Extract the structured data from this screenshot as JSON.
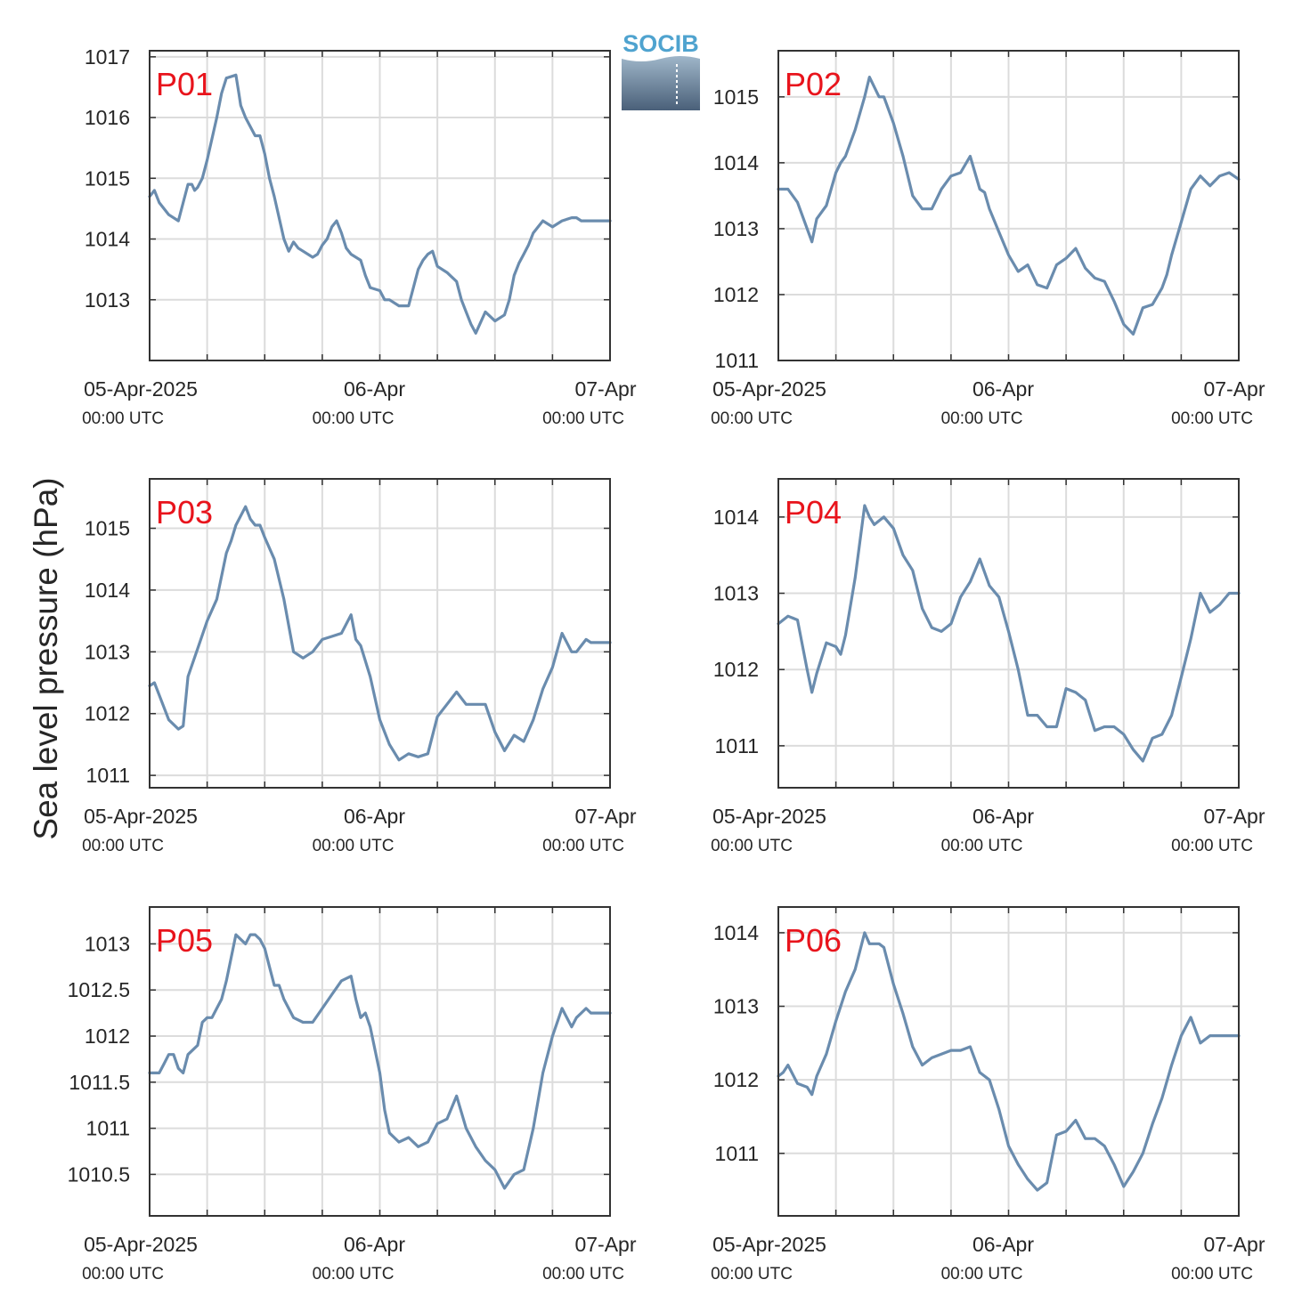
{
  "figure": {
    "ylabel": "Sea level pressure (hPa)",
    "logo_text": "SOCIB",
    "colors": {
      "line": "#6a8cae",
      "label": "#e8141c",
      "grid": "#dcdcdc",
      "axis": "#333333"
    }
  },
  "chart_data": [
    {
      "type": "line",
      "title": "P01",
      "xlabels": [
        {
          "date": "05-Apr-2025",
          "time": "00:00 UTC"
        },
        {
          "date": "06-Apr",
          "time": "00:00 UTC"
        },
        {
          "date": "07-Apr",
          "time": "00:00 UTC"
        }
      ],
      "x_hours_range": [
        0,
        48
      ],
      "ylim": [
        1012,
        1017.1
      ],
      "yticks": [
        1013,
        1014,
        1015,
        1016,
        1017
      ],
      "x": [
        0,
        0.5,
        1,
        2,
        3,
        3.5,
        4,
        4.4,
        4.7,
        5,
        5.5,
        6,
        7,
        7.5,
        8,
        9,
        9.3,
        9.5,
        10,
        11,
        11.5,
        12,
        12.5,
        13,
        14,
        14.5,
        15,
        15.5,
        16,
        17,
        17.5,
        18,
        18.5,
        19,
        19.5,
        20,
        20.5,
        21,
        21.5,
        22,
        22.5,
        23,
        24,
        24.5,
        25,
        26,
        27,
        28,
        28.5,
        29,
        29.5,
        30,
        31,
        32,
        32.5,
        33,
        33.5,
        34,
        35,
        36,
        37,
        37.5,
        38,
        38.5,
        39,
        39.5,
        40,
        41,
        42,
        43,
        44,
        44.5,
        45,
        45.5,
        46,
        46.5,
        47,
        47.5,
        48
      ],
      "y": [
        1014.7,
        1014.8,
        1014.6,
        1014.4,
        1014.3,
        1014.6,
        1014.9,
        1014.9,
        1014.8,
        1014.85,
        1015.0,
        1015.3,
        1016.0,
        1016.4,
        1016.65,
        1016.7,
        1016.4,
        1016.2,
        1016.0,
        1015.7,
        1015.7,
        1015.4,
        1015.0,
        1014.7,
        1014.0,
        1013.8,
        1013.95,
        1013.85,
        1013.8,
        1013.7,
        1013.75,
        1013.9,
        1014.0,
        1014.2,
        1014.3,
        1014.1,
        1013.85,
        1013.75,
        1013.7,
        1013.65,
        1013.4,
        1013.2,
        1013.15,
        1013.0,
        1013.0,
        1012.9,
        1012.9,
        1013.5,
        1013.65,
        1013.75,
        1013.8,
        1013.55,
        1013.45,
        1013.3,
        1013.0,
        1012.8,
        1012.6,
        1012.45,
        1012.8,
        1012.65,
        1012.75,
        1013.0,
        1013.4,
        1013.6,
        1013.75,
        1013.9,
        1014.1,
        1014.3,
        1014.2,
        1014.3,
        1014.35,
        1014.35,
        1014.3,
        1014.3,
        1014.3,
        1014.3,
        1014.3,
        1014.3,
        1014.3
      ],
      "grid": true
    },
    {
      "type": "line",
      "title": "P02",
      "xlabels": [
        {
          "date": "05-Apr-2025",
          "time": "00:00 UTC"
        },
        {
          "date": "06-Apr",
          "time": "00:00 UTC"
        },
        {
          "date": "07-Apr",
          "time": "00:00 UTC"
        }
      ],
      "x_hours_range": [
        0,
        48
      ],
      "ylim": [
        1011,
        1015.7
      ],
      "yticks": [
        1011,
        1012,
        1013,
        1014,
        1015
      ],
      "x": [
        0,
        1,
        2,
        3,
        3.5,
        4,
        5,
        6,
        6.5,
        7,
        8,
        9,
        9.5,
        10,
        10.5,
        11,
        12,
        13,
        14,
        15,
        16,
        17,
        18,
        19,
        20,
        21,
        21.5,
        22,
        23,
        24,
        25,
        26,
        27,
        28,
        29,
        30,
        31,
        32,
        33,
        34,
        35,
        36,
        37,
        38,
        39,
        40,
        40.5,
        41,
        42,
        43,
        44,
        45,
        46,
        47,
        48
      ],
      "y": [
        1013.6,
        1013.6,
        1013.4,
        1013.0,
        1012.8,
        1013.15,
        1013.35,
        1013.85,
        1014.0,
        1014.1,
        1014.5,
        1015.0,
        1015.3,
        1015.15,
        1015.0,
        1015.0,
        1014.6,
        1014.1,
        1013.5,
        1013.3,
        1013.3,
        1013.6,
        1013.8,
        1013.85,
        1014.1,
        1013.6,
        1013.55,
        1013.3,
        1012.95,
        1012.6,
        1012.35,
        1012.45,
        1012.15,
        1012.1,
        1012.45,
        1012.55,
        1012.7,
        1012.4,
        1012.25,
        1012.2,
        1011.9,
        1011.55,
        1011.4,
        1011.8,
        1011.85,
        1012.1,
        1012.3,
        1012.6,
        1013.1,
        1013.6,
        1013.8,
        1013.65,
        1013.8,
        1013.85,
        1013.75
      ],
      "grid": true
    },
    {
      "type": "line",
      "title": "P03",
      "xlabels": [
        {
          "date": "05-Apr-2025",
          "time": "00:00 UTC"
        },
        {
          "date": "06-Apr",
          "time": "00:00 UTC"
        },
        {
          "date": "07-Apr",
          "time": "00:00 UTC"
        }
      ],
      "x_hours_range": [
        0,
        48
      ],
      "ylim": [
        1010.8,
        1015.8
      ],
      "yticks": [
        1011,
        1012,
        1013,
        1014,
        1015
      ],
      "x": [
        0,
        0.5,
        1,
        2,
        3,
        3.5,
        4,
        5,
        6,
        7,
        8,
        8.5,
        9,
        10,
        10.5,
        11,
        11.5,
        12,
        13,
        14,
        15,
        16,
        17,
        18,
        19,
        20,
        21,
        21.5,
        22,
        23,
        24,
        25,
        26,
        27,
        28,
        29,
        30,
        31,
        32,
        33,
        34,
        35,
        36,
        37,
        38,
        39,
        40,
        41,
        42,
        43,
        44,
        44.5,
        45,
        45.5,
        46,
        47,
        48
      ],
      "y": [
        1012.45,
        1012.5,
        1012.3,
        1011.9,
        1011.75,
        1011.8,
        1012.6,
        1013.05,
        1013.5,
        1013.85,
        1014.6,
        1014.8,
        1015.05,
        1015.35,
        1015.15,
        1015.05,
        1015.05,
        1014.85,
        1014.5,
        1013.85,
        1013.0,
        1012.9,
        1013.0,
        1013.2,
        1013.25,
        1013.3,
        1013.6,
        1013.2,
        1013.1,
        1012.6,
        1011.9,
        1011.5,
        1011.25,
        1011.35,
        1011.3,
        1011.35,
        1011.95,
        1012.15,
        1012.35,
        1012.15,
        1012.15,
        1012.15,
        1011.7,
        1011.4,
        1011.65,
        1011.55,
        1011.9,
        1012.4,
        1012.75,
        1013.3,
        1013.0,
        1013.0,
        1013.1,
        1013.2,
        1013.15,
        1013.15,
        1013.15
      ],
      "grid": true
    },
    {
      "type": "line",
      "title": "P04",
      "xlabels": [
        {
          "date": "05-Apr-2025",
          "time": "00:00 UTC"
        },
        {
          "date": "06-Apr",
          "time": "00:00 UTC"
        },
        {
          "date": "07-Apr",
          "time": "00:00 UTC"
        }
      ],
      "x_hours_range": [
        0,
        48
      ],
      "ylim": [
        1010.45,
        1014.5
      ],
      "yticks": [
        1011,
        1012,
        1013,
        1014
      ],
      "x": [
        0,
        1,
        2,
        3,
        3.5,
        4,
        5,
        6,
        6.5,
        7,
        8,
        9,
        9.5,
        10,
        11,
        12,
        13,
        14,
        15,
        16,
        17,
        18,
        19,
        20,
        21,
        22,
        23,
        24,
        25,
        26,
        27,
        28,
        29,
        30,
        31,
        32,
        33,
        34,
        35,
        36,
        37,
        38,
        39,
        40,
        41,
        42,
        43,
        44,
        45,
        46,
        47,
        48
      ],
      "y": [
        1012.6,
        1012.7,
        1012.65,
        1012.0,
        1011.7,
        1011.95,
        1012.35,
        1012.3,
        1012.2,
        1012.45,
        1013.2,
        1014.15,
        1014.0,
        1013.9,
        1014.0,
        1013.85,
        1013.5,
        1013.3,
        1012.8,
        1012.55,
        1012.5,
        1012.6,
        1012.95,
        1013.15,
        1013.45,
        1013.1,
        1012.95,
        1012.5,
        1012.0,
        1011.4,
        1011.4,
        1011.25,
        1011.25,
        1011.75,
        1011.7,
        1011.6,
        1011.2,
        1011.25,
        1011.25,
        1011.15,
        1010.95,
        1010.8,
        1011.1,
        1011.15,
        1011.4,
        1011.9,
        1012.4,
        1013.0,
        1012.75,
        1012.85,
        1013.0,
        1013.0
      ],
      "grid": true
    },
    {
      "type": "line",
      "title": "P05",
      "xlabels": [
        {
          "date": "05-Apr-2025",
          "time": "00:00 UTC"
        },
        {
          "date": "06-Apr",
          "time": "00:00 UTC"
        },
        {
          "date": "07-Apr",
          "time": "00:00 UTC"
        }
      ],
      "x_hours_range": [
        0,
        48
      ],
      "ylim": [
        1010.05,
        1013.4
      ],
      "yticks": [
        1010.5,
        1011,
        1011.5,
        1012,
        1012.5,
        1013
      ],
      "x": [
        0,
        1,
        1.5,
        2,
        2.5,
        3,
        3.5,
        4,
        4.5,
        5,
        5.5,
        6,
        6.5,
        7,
        7.5,
        8,
        9,
        9.5,
        10,
        10.5,
        11,
        11.5,
        12,
        12.5,
        13,
        13.5,
        14,
        15,
        16,
        17,
        18,
        19,
        20,
        21,
        21.5,
        22,
        22.5,
        23,
        24,
        24.5,
        25,
        26,
        27,
        28,
        29,
        30,
        31,
        32,
        33,
        34,
        35,
        36,
        37,
        38,
        39,
        40,
        41,
        42,
        43,
        44,
        44.5,
        45,
        45.5,
        46,
        47,
        48
      ],
      "y": [
        1011.6,
        1011.6,
        1011.7,
        1011.8,
        1011.8,
        1011.65,
        1011.6,
        1011.8,
        1011.85,
        1011.9,
        1012.15,
        1012.2,
        1012.2,
        1012.3,
        1012.4,
        1012.6,
        1013.1,
        1013.05,
        1013.0,
        1013.1,
        1013.1,
        1013.05,
        1012.95,
        1012.75,
        1012.55,
        1012.55,
        1012.4,
        1012.2,
        1012.15,
        1012.15,
        1012.3,
        1012.45,
        1012.6,
        1012.65,
        1012.4,
        1012.2,
        1012.25,
        1012.1,
        1011.6,
        1011.2,
        1010.95,
        1010.85,
        1010.9,
        1010.8,
        1010.85,
        1011.05,
        1011.1,
        1011.35,
        1011.0,
        1010.8,
        1010.65,
        1010.55,
        1010.35,
        1010.5,
        1010.55,
        1011.0,
        1011.6,
        1012.0,
        1012.3,
        1012.1,
        1012.2,
        1012.25,
        1012.3,
        1012.25,
        1012.25,
        1012.25
      ],
      "grid": true
    },
    {
      "type": "line",
      "title": "P06",
      "xlabels": [
        {
          "date": "05-Apr-2025",
          "time": "00:00 UTC"
        },
        {
          "date": "06-Apr",
          "time": "00:00 UTC"
        },
        {
          "date": "07-Apr",
          "time": "00:00 UTC"
        }
      ],
      "x_hours_range": [
        0,
        48
      ],
      "ylim": [
        1010.15,
        1014.35
      ],
      "yticks": [
        1011,
        1012,
        1013,
        1014
      ],
      "x": [
        0,
        0.5,
        1,
        2,
        3,
        3.5,
        4,
        5,
        6,
        7,
        8,
        9,
        9.5,
        10,
        10.5,
        11,
        12,
        13,
        14,
        15,
        16,
        17,
        18,
        19,
        20,
        21,
        22,
        23,
        24,
        25,
        26,
        27,
        28,
        29,
        30,
        31,
        32,
        33,
        34,
        35,
        36,
        37,
        38,
        39,
        40,
        41,
        42,
        43,
        44,
        45,
        46,
        47,
        48
      ],
      "y": [
        1012.05,
        1012.1,
        1012.2,
        1011.95,
        1011.9,
        1011.8,
        1012.05,
        1012.35,
        1012.8,
        1013.2,
        1013.5,
        1014.0,
        1013.85,
        1013.85,
        1013.85,
        1013.8,
        1013.3,
        1012.9,
        1012.45,
        1012.2,
        1012.3,
        1012.35,
        1012.4,
        1012.4,
        1012.45,
        1012.1,
        1012.0,
        1011.6,
        1011.1,
        1010.85,
        1010.65,
        1010.5,
        1010.6,
        1011.25,
        1011.3,
        1011.45,
        1011.2,
        1011.2,
        1011.1,
        1010.85,
        1010.55,
        1010.75,
        1011.0,
        1011.4,
        1011.75,
        1012.2,
        1012.6,
        1012.85,
        1012.5,
        1012.6,
        1012.6,
        1012.6,
        1012.6
      ],
      "grid": true
    }
  ]
}
